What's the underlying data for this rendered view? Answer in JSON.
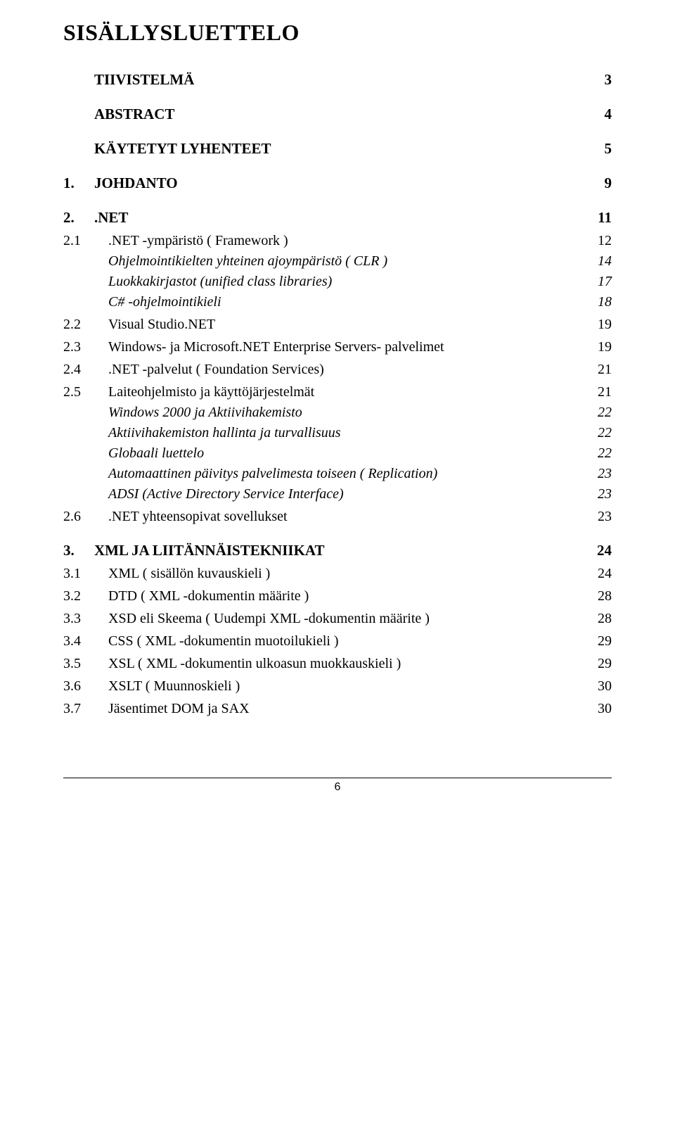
{
  "title": "SISÄLLYSLUETTELO",
  "entries": [
    {
      "level": 1,
      "num": "",
      "label": "TIIVISTELMÄ",
      "page": "3"
    },
    {
      "level": 1,
      "num": "",
      "label": "ABSTRACT",
      "page": "4"
    },
    {
      "level": 1,
      "num": "",
      "label": "KÄYTETYT LYHENTEET",
      "page": "5"
    },
    {
      "level": 1,
      "num": "1.",
      "label": "JOHDANTO",
      "page": "9"
    },
    {
      "level": 1,
      "num": "2.",
      "label": ".NET",
      "page": "11"
    },
    {
      "level": 2,
      "num": "2.1",
      "label": ".NET -ympäristö ( Framework )",
      "page": "12"
    },
    {
      "level": 3,
      "num": "",
      "label": "Ohjelmointikielten yhteinen ajoympäristö ( CLR )",
      "page": "14"
    },
    {
      "level": 3,
      "num": "",
      "label": "Luokkakirjastot (unified class libraries)",
      "page": "17"
    },
    {
      "level": 3,
      "num": "",
      "label": "C# -ohjelmointikieli",
      "page": "18"
    },
    {
      "level": 2,
      "num": "2.2",
      "label": "Visual Studio.NET",
      "page": "19"
    },
    {
      "level": 2,
      "num": "2.3",
      "label": "Windows- ja Microsoft.NET Enterprise Servers- palvelimet",
      "page": "19"
    },
    {
      "level": 2,
      "num": "2.4",
      "label": ".NET -palvelut ( Foundation Services)",
      "page": "21"
    },
    {
      "level": 2,
      "num": "2.5",
      "label": "Laiteohjelmisto ja käyttöjärjestelmät",
      "page": "21"
    },
    {
      "level": 3,
      "num": "",
      "label": "Windows 2000 ja Aktiivihakemisto",
      "page": "22"
    },
    {
      "level": 3,
      "num": "",
      "label": "Aktiivihakemiston hallinta ja turvallisuus",
      "page": "22"
    },
    {
      "level": 3,
      "num": "",
      "label": "Globaali luettelo",
      "page": "22"
    },
    {
      "level": 3,
      "num": "",
      "label": "Automaattinen päivitys palvelimesta toiseen ( Replication)",
      "page": "23"
    },
    {
      "level": 3,
      "num": "",
      "label": "ADSI (Active Directory Service Interface)",
      "page": "23"
    },
    {
      "level": 2,
      "num": "2.6",
      "label": ".NET yhteensopivat sovellukset",
      "page": "23"
    },
    {
      "level": 1,
      "num": "3.",
      "label": "XML JA LIITÄNNÄISTEKNIIKAT",
      "page": "24"
    },
    {
      "level": 2,
      "num": "3.1",
      "label": "XML ( sisällön kuvauskieli )",
      "page": "24"
    },
    {
      "level": 2,
      "num": "3.2",
      "label": "DTD ( XML -dokumentin määrite )",
      "page": "28"
    },
    {
      "level": 2,
      "num": "3.3",
      "label": "XSD eli Skeema ( Uudempi XML -dokumentin määrite )",
      "page": "28"
    },
    {
      "level": 2,
      "num": "3.4",
      "label": "CSS ( XML -dokumentin muotoilukieli )",
      "page": "29"
    },
    {
      "level": 2,
      "num": "3.5",
      "label": "XSL ( XML -dokumentin ulkoasun muokkauskieli )",
      "page": "29"
    },
    {
      "level": 2,
      "num": "3.6",
      "label": "XSLT ( Muunnoskieli )",
      "page": "30"
    },
    {
      "level": 2,
      "num": "3.7",
      "label": "Jäsentimet DOM ja SAX",
      "page": "30"
    }
  ],
  "footer_page": "6",
  "colors": {
    "text": "#000000",
    "background": "#ffffff",
    "divider": "#000000"
  },
  "fonts": {
    "body": "Times New Roman",
    "footer": "Arial"
  }
}
